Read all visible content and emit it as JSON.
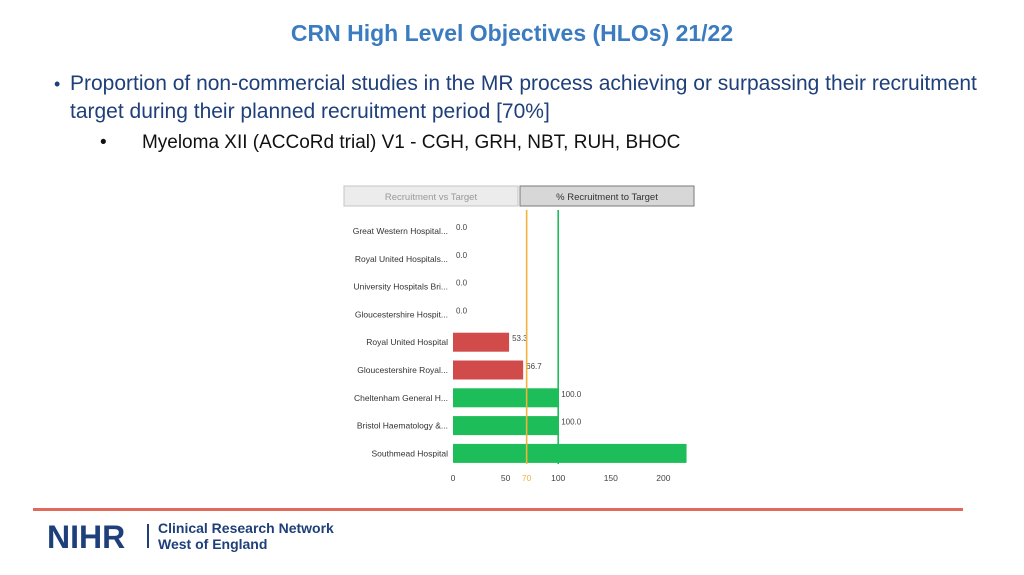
{
  "slide": {
    "title": "CRN High Level Objectives (HLOs) 21/22",
    "bullet_main": "Proportion of non-commercial studies in the MR process achieving or surpassing their recruitment target during their planned recruitment period [70%]",
    "bullet_sub": "Myeloma XII (ACCoRd trial) V1 - CGH, GRH, NBT, RUH, BHOC",
    "bullet_glyph": "•"
  },
  "tabs": [
    {
      "label": "Recruitment vs Target",
      "active": false
    },
    {
      "label": "% Recruitment to Target",
      "active": true
    }
  ],
  "chart_data": {
    "type": "bar",
    "orientation": "horizontal",
    "categories": [
      "Great Western Hospital...",
      "Royal United Hospitals...",
      "University Hospitals Bri...",
      "Gloucestershire Hospit...",
      "Royal United Hospital",
      "Gloucestershire Royal...",
      "Cheltenham General H...",
      "Bristol Haematology &...",
      "Southmead Hospital"
    ],
    "values": [
      0,
      0,
      0,
      0,
      53.3,
      66.7,
      100,
      100,
      222
    ],
    "value_labels": [
      "0.0",
      "0.0",
      "0.0",
      "0.0",
      "53.3",
      "66.7",
      "100.0",
      "100.0",
      ""
    ],
    "bar_colors": [
      "#d24b4b",
      "#d24b4b",
      "#d24b4b",
      "#d24b4b",
      "#d24b4b",
      "#d24b4b",
      "#1dbd5a",
      "#1dbd5a",
      "#1dbd5a"
    ],
    "xlim": [
      0,
      222
    ],
    "xticks": [
      0,
      50,
      100,
      150,
      200
    ],
    "reference_lines": [
      {
        "value": 70,
        "color": "#f3b23c",
        "label": "70"
      },
      {
        "value": 100,
        "color": "#1dbd5a",
        "label": ""
      }
    ],
    "grid": false
  },
  "footer": {
    "logo_text": "NIHR",
    "org_line1": "Clinical Research Network",
    "org_line2": "West of England",
    "line_color": "#e26a5c"
  }
}
